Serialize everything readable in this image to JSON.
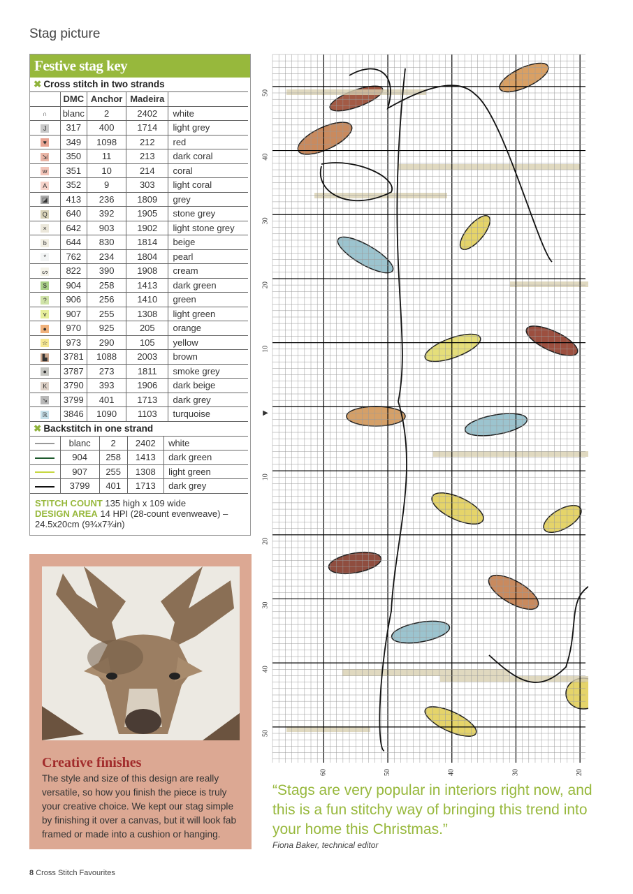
{
  "page_title": "Stag picture",
  "key": {
    "title": "Festive stag key",
    "cross_heading": "Cross stitch in two strands",
    "backstitch_heading": "Backstitch in one strand",
    "columns": [
      "DMC",
      "Anchor",
      "Madeira"
    ],
    "cross": [
      {
        "sym": "∩",
        "bg": "#ffffff",
        "dmc": "blanc",
        "anchor": "2",
        "madeira": "2402",
        "name": "white"
      },
      {
        "sym": "J",
        "bg": "#c9c9c9",
        "dmc": "317",
        "anchor": "400",
        "madeira": "1714",
        "name": "light grey"
      },
      {
        "sym": "♥",
        "bg": "#e8a493",
        "dmc": "349",
        "anchor": "1098",
        "madeira": "212",
        "name": "red"
      },
      {
        "sym": "⇲",
        "bg": "#eab5a6",
        "dmc": "350",
        "anchor": "11",
        "madeira": "213",
        "name": "dark coral"
      },
      {
        "sym": "w",
        "bg": "#f2c4b8",
        "dmc": "351",
        "anchor": "10",
        "madeira": "214",
        "name": "coral"
      },
      {
        "sym": "A",
        "bg": "#f6d3ca",
        "dmc": "352",
        "anchor": "9",
        "madeira": "303",
        "name": "light coral"
      },
      {
        "sym": "◪",
        "bg": "#a9a9a9",
        "dmc": "413",
        "anchor": "236",
        "madeira": "1809",
        "name": "grey"
      },
      {
        "sym": "Q",
        "bg": "#d8d2b8",
        "dmc": "640",
        "anchor": "392",
        "madeira": "1905",
        "name": "stone grey"
      },
      {
        "sym": "×",
        "bg": "#ebe7da",
        "dmc": "642",
        "anchor": "903",
        "madeira": "1902",
        "name": "light stone grey"
      },
      {
        "sym": "b",
        "bg": "#f1eee2",
        "dmc": "644",
        "anchor": "830",
        "madeira": "1814",
        "name": "beige"
      },
      {
        "sym": "*",
        "bg": "#f2f4f4",
        "dmc": "762",
        "anchor": "234",
        "madeira": "1804",
        "name": "pearl"
      },
      {
        "sym": "ᔕ",
        "bg": "#f4f2e8",
        "dmc": "822",
        "anchor": "390",
        "madeira": "1908",
        "name": "cream"
      },
      {
        "sym": "$",
        "bg": "#a9cf88",
        "dmc": "904",
        "anchor": "258",
        "madeira": "1413",
        "name": "dark green"
      },
      {
        "sym": "?",
        "bg": "#cfe3a8",
        "dmc": "906",
        "anchor": "256",
        "madeira": "1410",
        "name": "green"
      },
      {
        "sym": "v",
        "bg": "#e6ee9a",
        "dmc": "907",
        "anchor": "255",
        "madeira": "1308",
        "name": "light green"
      },
      {
        "sym": "●",
        "bg": "#f0b27c",
        "dmc": "970",
        "anchor": "925",
        "madeira": "205",
        "name": "orange"
      },
      {
        "sym": "☆",
        "bg": "#f6e892",
        "dmc": "973",
        "anchor": "290",
        "madeira": "105",
        "name": "yellow"
      },
      {
        "sym": "▙",
        "bg": "#c9a48a",
        "dmc": "3781",
        "anchor": "1088",
        "madeira": "2003",
        "name": "brown"
      },
      {
        "sym": "●",
        "bg": "#c5c5c0",
        "dmc": "3787",
        "anchor": "273",
        "madeira": "1811",
        "name": "smoke grey"
      },
      {
        "sym": "K",
        "bg": "#ddd0c6",
        "dmc": "3790",
        "anchor": "393",
        "madeira": "1906",
        "name": "dark beige"
      },
      {
        "sym": "↘",
        "bg": "#b8b8b8",
        "dmc": "3799",
        "anchor": "401",
        "madeira": "1713",
        "name": "dark grey"
      },
      {
        "sym": "ℝ",
        "bg": "#c7e1ea",
        "dmc": "3846",
        "anchor": "1090",
        "madeira": "1103",
        "name": "turquoise"
      }
    ],
    "backstitch": [
      {
        "color": "#ffffff",
        "dmc": "blanc",
        "anchor": "2",
        "madeira": "2402",
        "name": "white"
      },
      {
        "color": "#1e5a2e",
        "dmc": "904",
        "anchor": "258",
        "madeira": "1413",
        "name": "dark green"
      },
      {
        "color": "#c6d840",
        "dmc": "907",
        "anchor": "255",
        "madeira": "1308",
        "name": "light green"
      },
      {
        "color": "#111111",
        "dmc": "3799",
        "anchor": "401",
        "madeira": "1713",
        "name": "dark grey"
      }
    ],
    "stitch_count_label": "STITCH COUNT",
    "stitch_count": "135 high x 109 wide",
    "design_area_label": "DESIGN AREA",
    "design_area": "14 HPI (28-count evenweave) – 24.5x20cm (9¾x7¾in)"
  },
  "creative": {
    "title": "Creative finishes",
    "body": "The style and size of this design are really versatile, so how you finish the piece is truly your creative choice. We kept our stag simple by finishing it over a canvas, but it will look fab framed or made into a cushion or hanging."
  },
  "chart": {
    "left_labels": [
      "50",
      "40",
      "30",
      "20",
      "10",
      "▶",
      "10",
      "20",
      "30",
      "40",
      "50"
    ],
    "bottom_labels": [
      "60",
      "50",
      "40",
      "30",
      "20"
    ]
  },
  "quote": {
    "text": "“Stags are very popular in interiors right now, and this is a fun stitchy way of bringing this trend into your home this Christmas.”",
    "attribution": "Fiona Baker, technical editor"
  },
  "footer": {
    "page": "8",
    "publication": "Cross Stitch Favourites"
  }
}
